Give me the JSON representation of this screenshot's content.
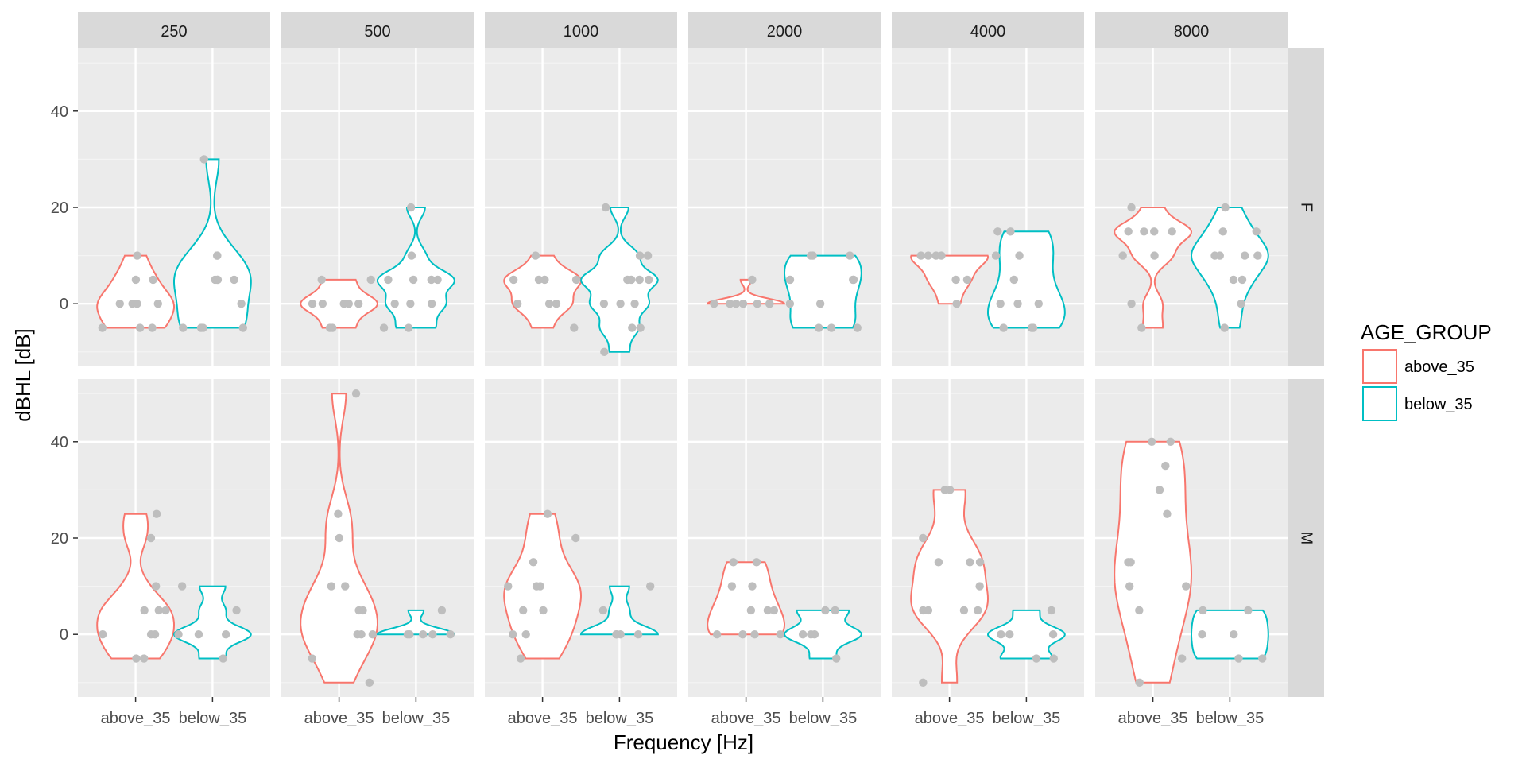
{
  "chart_data": {
    "type": "violin",
    "xlabel": "Frequency [Hz]",
    "ylabel": "dBHL [dB]",
    "facet_columns": [
      "250",
      "500",
      "1000",
      "2000",
      "4000",
      "8000"
    ],
    "facet_rows": [
      "F",
      "M"
    ],
    "categories": [
      "above_35",
      "below_35"
    ],
    "ylim": [
      -13,
      53
    ],
    "yticks": [
      0,
      20,
      40
    ],
    "legend": {
      "title": "AGE_GROUP",
      "position": "right",
      "entries": [
        {
          "label": "above_35",
          "color": "#F8766D"
        },
        {
          "label": "below_35",
          "color": "#00BFC4"
        }
      ]
    },
    "point_color": "#BEBEBE",
    "panel_background": "#EBEBEB",
    "strip_background": "#D9D9D9",
    "panels": [
      {
        "row": "F",
        "col": "250",
        "above_35": [
          -5,
          -5,
          0,
          0,
          0,
          5,
          5,
          10,
          0,
          -5
        ],
        "below_35": [
          -5,
          -5,
          -5,
          -5,
          5,
          5,
          10,
          5,
          10,
          30,
          0,
          5
        ]
      },
      {
        "row": "F",
        "col": "500",
        "above_35": [
          -5,
          -5,
          0,
          0,
          0,
          5,
          5,
          0,
          0
        ],
        "below_35": [
          -5,
          -5,
          0,
          0,
          5,
          5,
          5,
          10,
          20,
          0,
          5
        ]
      },
      {
        "row": "F",
        "col": "1000",
        "above_35": [
          -5,
          0,
          0,
          5,
          5,
          5,
          10,
          0,
          5
        ],
        "below_35": [
          -10,
          -5,
          -5,
          0,
          0,
          0,
          5,
          5,
          5,
          10,
          10,
          20,
          5
        ]
      },
      {
        "row": "F",
        "col": "2000",
        "above_35": [
          0,
          0,
          0,
          0,
          0,
          0,
          5,
          0
        ],
        "below_35": [
          -5,
          -5,
          0,
          0,
          5,
          5,
          5,
          10,
          10,
          10,
          -5
        ]
      },
      {
        "row": "F",
        "col": "4000",
        "above_35": [
          0,
          5,
          5,
          10,
          10,
          10,
          10
        ],
        "below_35": [
          -5,
          -5,
          0,
          0,
          5,
          10,
          10,
          15,
          15,
          0,
          -5
        ]
      },
      {
        "row": "F",
        "col": "8000",
        "above_35": [
          -5,
          0,
          10,
          10,
          15,
          15,
          15,
          15,
          20
        ],
        "below_35": [
          -5,
          0,
          5,
          5,
          10,
          10,
          10,
          10,
          15,
          15,
          20
        ]
      },
      {
        "row": "M",
        "col": "250",
        "above_35": [
          -5,
          -5,
          0,
          0,
          0,
          5,
          5,
          5,
          10,
          20,
          25
        ],
        "below_35": [
          -5,
          0,
          0,
          0,
          5,
          10
        ]
      },
      {
        "row": "M",
        "col": "500",
        "above_35": [
          -10,
          -5,
          0,
          0,
          0,
          5,
          5,
          10,
          10,
          20,
          25,
          50
        ],
        "below_35": [
          0,
          0,
          0,
          0,
          0,
          5
        ]
      },
      {
        "row": "M",
        "col": "1000",
        "above_35": [
          -5,
          0,
          0,
          5,
          5,
          10,
          10,
          10,
          15,
          20,
          25
        ],
        "below_35": [
          0,
          0,
          0,
          0,
          5,
          10
        ]
      },
      {
        "row": "M",
        "col": "2000",
        "above_35": [
          0,
          0,
          0,
          0,
          5,
          5,
          5,
          10,
          10,
          15,
          15
        ],
        "below_35": [
          -5,
          0,
          0,
          0,
          5,
          5
        ]
      },
      {
        "row": "M",
        "col": "4000",
        "above_35": [
          -10,
          5,
          5,
          5,
          5,
          10,
          15,
          15,
          15,
          20,
          30,
          30
        ],
        "below_35": [
          -5,
          -5,
          0,
          0,
          0,
          5
        ]
      },
      {
        "row": "M",
        "col": "8000",
        "above_35": [
          -10,
          -5,
          5,
          10,
          10,
          15,
          15,
          25,
          30,
          35,
          40,
          40
        ],
        "below_35": [
          -5,
          -5,
          0,
          0,
          5,
          5
        ]
      }
    ]
  }
}
